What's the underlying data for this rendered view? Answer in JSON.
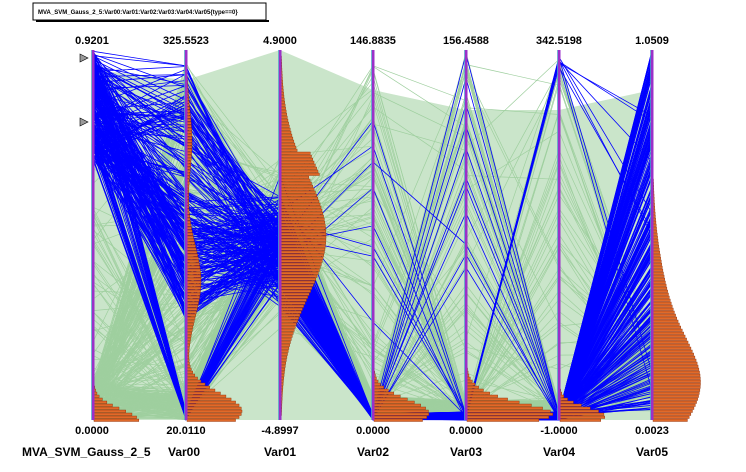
{
  "chart_data": {
    "type": "parallel-coordinates",
    "title": "MVA_SVM_Gauss_2_5:Var00:Var01:Var02:Var03:Var04:Var05{type==0}",
    "axes": [
      {
        "name": "MVA_SVM_Gauss_2_5",
        "max": "0.9201",
        "min": "0.0000"
      },
      {
        "name": "Var00",
        "max": "325.5523",
        "min": "20.0110"
      },
      {
        "name": "Var01",
        "max": "4.9000",
        "min": "-4.8997"
      },
      {
        "name": "Var02",
        "max": "146.8835",
        "min": "0.0000"
      },
      {
        "name": "Var03",
        "max": "156.4588",
        "min": "0.0000"
      },
      {
        "name": "Var04",
        "max": "342.5198",
        "min": "-1.0000"
      },
      {
        "name": "Var05",
        "max": "1.0509",
        "min": "0.0023"
      }
    ],
    "colors": {
      "selected_lines": "#0000ff",
      "background_lines": "#9fcf9f",
      "axis": "#9b30c8",
      "histogram_fill": "#e06a2a",
      "histogram_edge": "#8b2a00"
    }
  }
}
